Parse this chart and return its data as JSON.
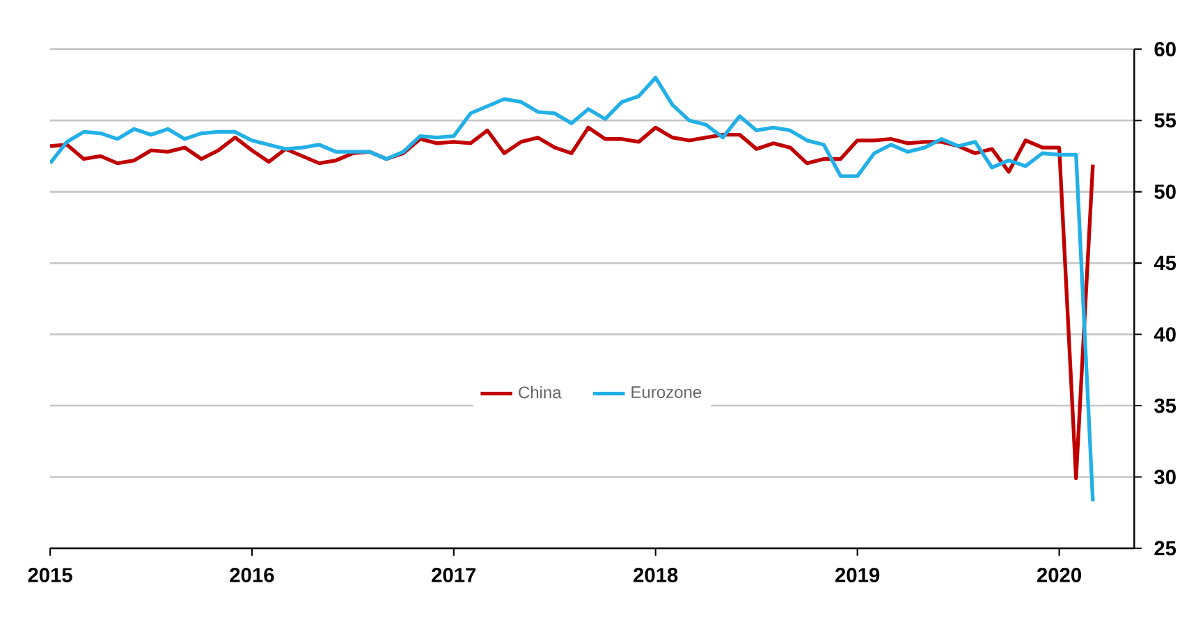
{
  "chart_data": {
    "type": "line",
    "x": [
      "2015-01",
      "2015-02",
      "2015-03",
      "2015-04",
      "2015-05",
      "2015-06",
      "2015-07",
      "2015-08",
      "2015-09",
      "2015-10",
      "2015-11",
      "2015-12",
      "2016-01",
      "2016-02",
      "2016-03",
      "2016-04",
      "2016-05",
      "2016-06",
      "2016-07",
      "2016-08",
      "2016-09",
      "2016-10",
      "2016-11",
      "2016-12",
      "2017-01",
      "2017-02",
      "2017-03",
      "2017-04",
      "2017-05",
      "2017-06",
      "2017-07",
      "2017-08",
      "2017-09",
      "2017-10",
      "2017-11",
      "2017-12",
      "2018-01",
      "2018-02",
      "2018-03",
      "2018-04",
      "2018-05",
      "2018-06",
      "2018-07",
      "2018-08",
      "2018-09",
      "2018-10",
      "2018-11",
      "2018-12",
      "2019-01",
      "2019-02",
      "2019-03",
      "2019-04",
      "2019-05",
      "2019-06",
      "2019-07",
      "2019-08",
      "2019-09",
      "2019-10",
      "2019-11",
      "2019-12",
      "2020-01",
      "2020-02",
      "2020-03"
    ],
    "series": [
      {
        "name": "China",
        "color": "#c00000",
        "values": [
          53.2,
          53.3,
          52.3,
          52.5,
          52.0,
          52.2,
          52.9,
          52.8,
          53.1,
          52.3,
          52.9,
          53.8,
          52.9,
          52.1,
          53.0,
          52.5,
          52.0,
          52.2,
          52.7,
          52.8,
          52.3,
          52.7,
          53.7,
          53.4,
          53.5,
          53.4,
          54.3,
          52.7,
          53.5,
          53.8,
          53.1,
          52.7,
          54.5,
          53.7,
          53.7,
          53.5,
          54.5,
          53.8,
          53.6,
          53.8,
          54.0,
          54.0,
          53.0,
          53.4,
          53.1,
          52.0,
          52.3,
          52.3,
          53.6,
          53.6,
          53.7,
          53.4,
          53.5,
          53.5,
          53.2,
          52.7,
          53.0,
          51.4,
          53.6,
          53.1,
          53.1,
          29.9,
          51.9
        ]
      },
      {
        "name": "Eurozone",
        "color": "#22b0e6",
        "values": [
          52.0,
          53.5,
          54.2,
          54.1,
          53.7,
          54.4,
          54.0,
          54.4,
          53.7,
          54.1,
          54.2,
          54.2,
          53.6,
          53.3,
          53.0,
          53.1,
          53.3,
          52.8,
          52.8,
          52.8,
          52.3,
          52.8,
          53.9,
          53.8,
          53.9,
          55.5,
          56.0,
          56.5,
          56.3,
          55.6,
          55.5,
          54.8,
          55.8,
          55.1,
          56.3,
          56.7,
          58.0,
          56.1,
          55.0,
          54.7,
          53.8,
          55.3,
          54.3,
          54.5,
          54.3,
          53.6,
          53.3,
          51.1,
          51.1,
          52.7,
          53.3,
          52.8,
          53.1,
          53.7,
          53.2,
          53.5,
          51.7,
          52.2,
          51.8,
          52.7,
          52.6,
          52.6,
          28.3
        ]
      }
    ],
    "xlim": [
      "2015-01",
      "2020-05-15"
    ],
    "xticks": [
      "2015",
      "2016",
      "2017",
      "2018",
      "2019",
      "2020"
    ],
    "ylim": [
      25,
      60
    ],
    "yticks": [
      25,
      30,
      35,
      40,
      45,
      50,
      55,
      60
    ],
    "grid": "y",
    "legend": "center",
    "marker": "none",
    "line_style": "solid"
  }
}
